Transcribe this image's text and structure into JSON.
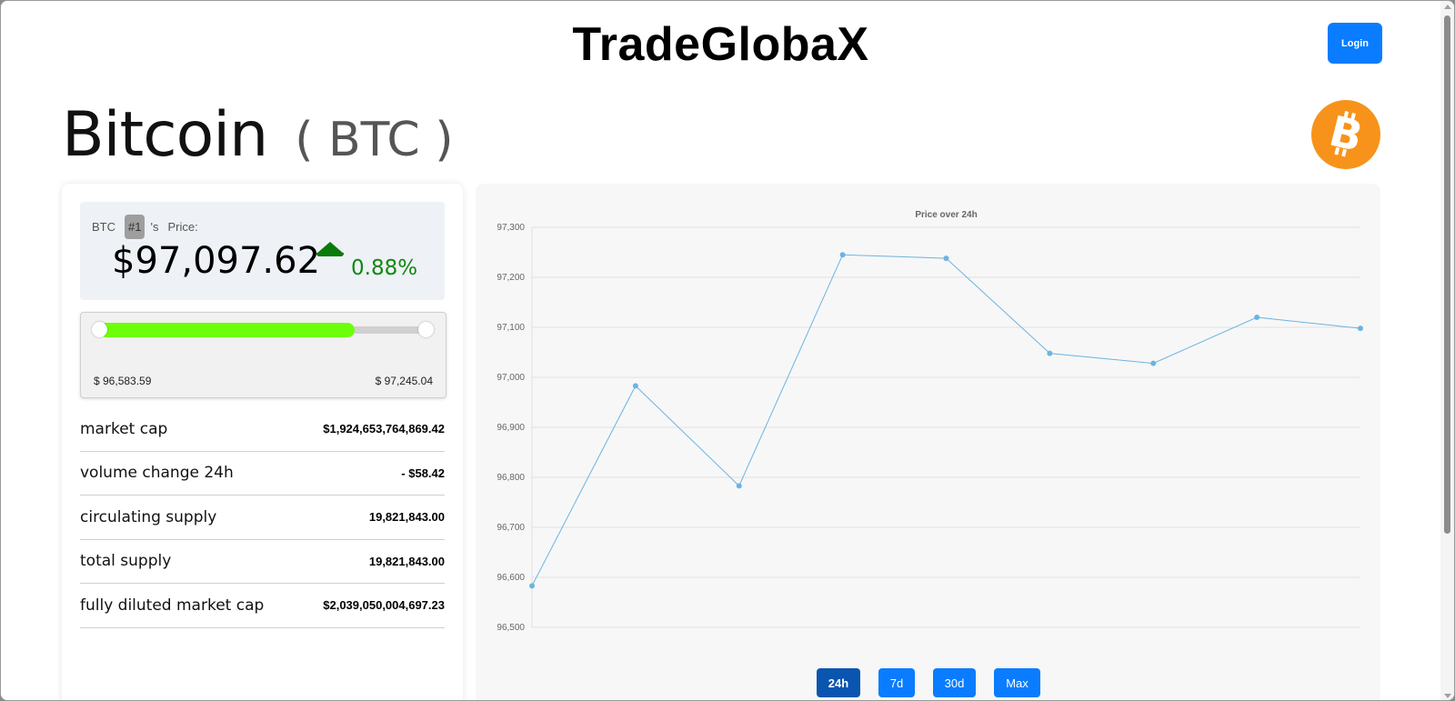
{
  "header": {
    "site_title": "TradeGlobaX",
    "login_label": "Login"
  },
  "coin": {
    "name": "Bitcoin",
    "symbol_display": "( BTC )",
    "logo_icon": "bitcoin-logo-icon",
    "logo_color": "#f7931a"
  },
  "price_box": {
    "symbol": "BTC",
    "rank": "#1",
    "possessive": "'s",
    "label": "Price:",
    "price": "$97,097.62",
    "change": "0.88%",
    "trend_icon": "up-arrow-icon",
    "trend_color": "#118811"
  },
  "range_24h": {
    "low_label": "$ 96,583.59",
    "high_label": "$ 97,245.04",
    "position_fraction": 0.78,
    "fill_color": "#6dff0a"
  },
  "stats": [
    {
      "label": "market cap",
      "value": "$1,924,653,764,869.42"
    },
    {
      "label": "volume change 24h",
      "value": "- $58.42"
    },
    {
      "label": "circulating supply",
      "value": "19,821,843.00"
    },
    {
      "label": "total supply",
      "value": "19,821,843.00"
    },
    {
      "label": "fully diluted market cap",
      "value": "$2,039,050,004,697.23"
    }
  ],
  "chart_data": {
    "type": "line",
    "title": "Price over 24h",
    "xlabel": "",
    "ylabel": "",
    "ylim": [
      96500,
      97300
    ],
    "yticks": [
      96500,
      96600,
      96700,
      96800,
      96900,
      97000,
      97100,
      97200,
      97300
    ],
    "ytick_labels": [
      "96,500",
      "96,600",
      "96,700",
      "96,800",
      "96,900",
      "97,000",
      "97,100",
      "97,200",
      "97,300"
    ],
    "grid": true,
    "line_color": "#6cb4e0",
    "series": [
      {
        "values": [
          96583,
          96983,
          96783,
          97245,
          97238,
          97048,
          97028,
          97120,
          97098
        ]
      }
    ]
  },
  "range_buttons": [
    {
      "label": "24h",
      "active": true
    },
    {
      "label": "7d",
      "active": false
    },
    {
      "label": "30d",
      "active": false
    },
    {
      "label": "Max",
      "active": false
    }
  ]
}
